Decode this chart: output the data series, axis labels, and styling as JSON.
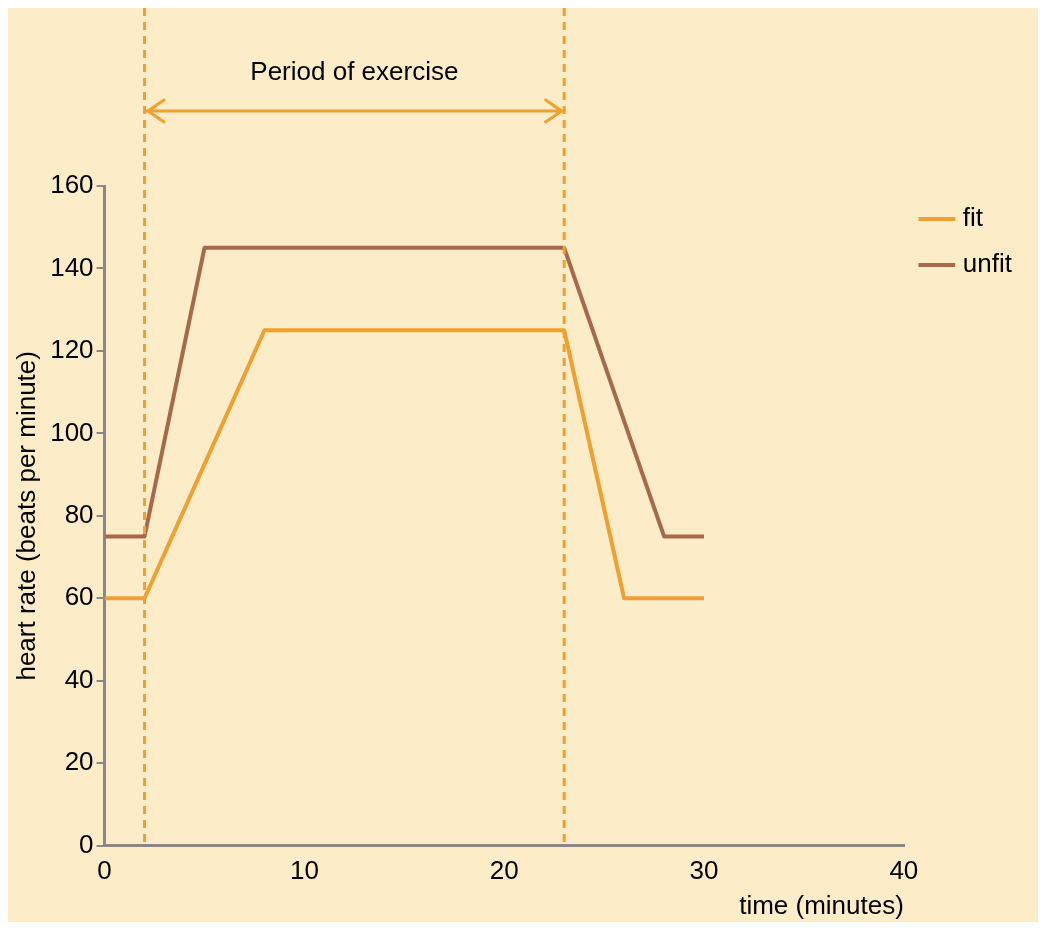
{
  "chart_data": {
    "type": "line",
    "xlabel": "time (minutes)",
    "ylabel": "heart rate (beats per minute)",
    "xlim": [
      0,
      40
    ],
    "xticks": [
      0,
      10,
      20,
      30,
      40
    ],
    "ylim": [
      0,
      160
    ],
    "yticks": [
      0,
      20,
      40,
      60,
      80,
      100,
      120,
      140,
      160
    ],
    "grid": false,
    "legend": "right",
    "marker": "none",
    "line_style": "solid",
    "series": [
      {
        "name": "fit",
        "color": "#f0a030",
        "x": [
          0,
          2,
          8,
          23,
          26,
          30
        ],
        "values": [
          60,
          60,
          125,
          125,
          60,
          60
        ]
      },
      {
        "name": "unfit",
        "color": "#a8684a",
        "x": [
          0,
          2,
          5,
          23,
          28,
          30
        ],
        "values": [
          75,
          75,
          145,
          145,
          75,
          75
        ]
      }
    ],
    "ref_lines": [
      {
        "axis": "x",
        "value": 2,
        "color": "#f0a030",
        "line_style": "dashed"
      },
      {
        "axis": "x",
        "value": 23,
        "color": "#f0a030",
        "line_style": "dashed"
      }
    ],
    "annotations": [
      "Period of exercise"
    ]
  }
}
